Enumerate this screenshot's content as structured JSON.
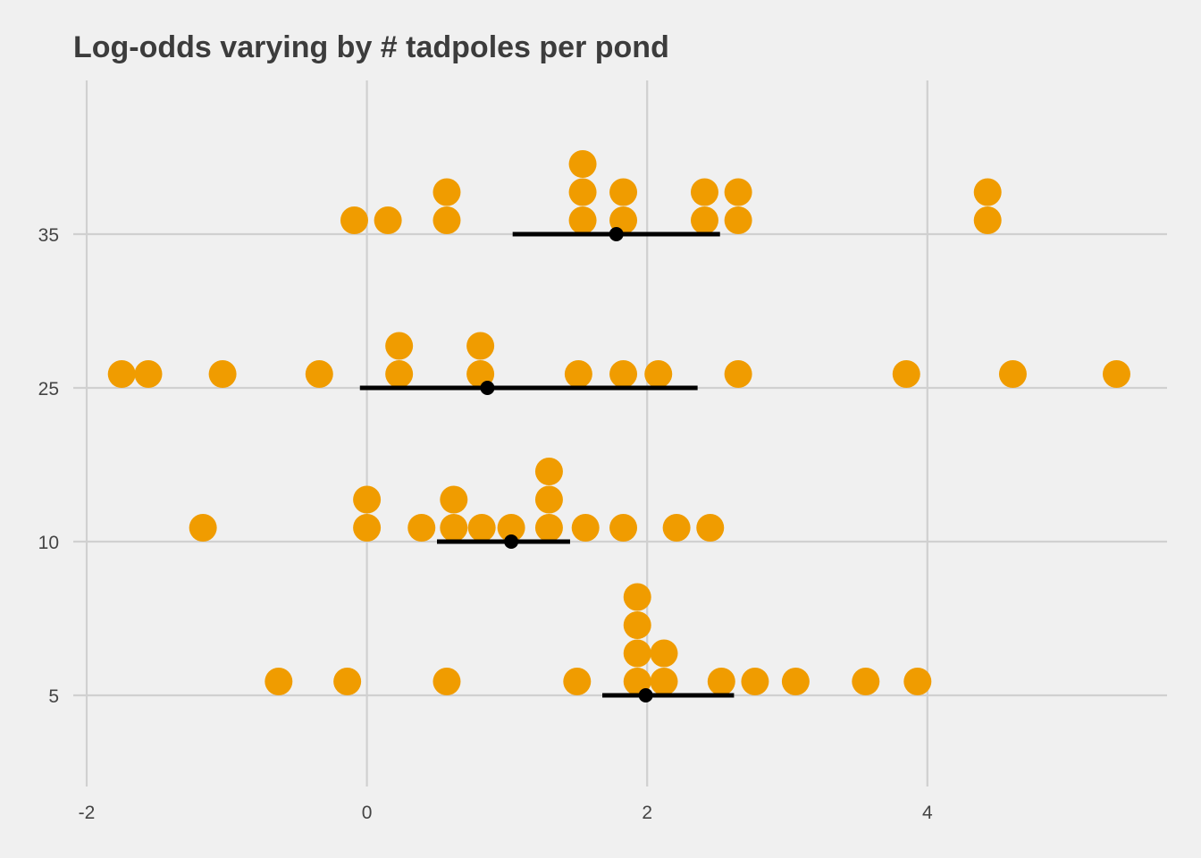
{
  "chart_data": {
    "type": "scatter",
    "title": "Log-odds varying by # tadpoles per pond",
    "xlabel": "",
    "ylabel": "",
    "xlim": [
      -2.05,
      5.65
    ],
    "x_ticks": [
      -2,
      0,
      2,
      4
    ],
    "x_tick_labels": [
      "-2",
      "0",
      "2",
      "4"
    ],
    "y_categories": [
      "5",
      "10",
      "25",
      "35"
    ],
    "grid": true,
    "legend": "none",
    "colors": {
      "dots": "#f09c00",
      "summary": "#000000",
      "grid": "#d0d0d0",
      "background": "#f0f0f0"
    },
    "groups": [
      {
        "category": "35",
        "summary": {
          "mean": 1.78,
          "low": 1.04,
          "high": 2.52
        },
        "dots": [
          -0.09,
          0.15,
          0.57,
          0.57,
          1.54,
          1.54,
          1.54,
          1.83,
          1.83,
          2.41,
          2.41,
          2.65,
          2.65,
          4.43,
          4.43
        ]
      },
      {
        "category": "25",
        "summary": {
          "mean": 0.86,
          "low": -0.05,
          "high": 2.36
        },
        "dots": [
          -1.75,
          -1.56,
          -1.03,
          -0.34,
          0.23,
          0.23,
          0.81,
          0.81,
          1.51,
          1.83,
          2.08,
          2.65,
          3.85,
          4.61,
          5.35
        ]
      },
      {
        "category": "10",
        "summary": {
          "mean": 1.03,
          "low": 0.5,
          "high": 1.45
        },
        "dots": [
          -1.17,
          0.0,
          0.0,
          0.39,
          0.62,
          0.62,
          0.82,
          1.03,
          1.3,
          1.3,
          1.3,
          1.56,
          1.83,
          2.21,
          2.45
        ]
      },
      {
        "category": "5",
        "summary": {
          "mean": 1.99,
          "low": 1.68,
          "high": 2.62
        },
        "dots": [
          -0.63,
          -0.14,
          0.57,
          1.5,
          1.93,
          1.93,
          1.93,
          1.93,
          2.12,
          2.12,
          2.53,
          2.77,
          3.06,
          3.56,
          3.93
        ]
      }
    ]
  }
}
